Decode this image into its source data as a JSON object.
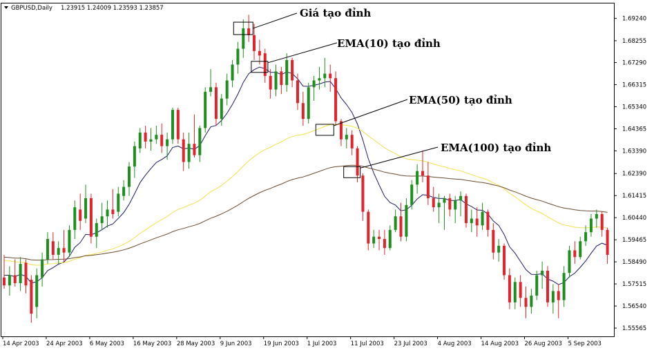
{
  "header": {
    "symbol": "GBPUSD,Daily",
    "ohlc": "1.23915 1.24009 1.23593 1.23857"
  },
  "colors": {
    "bull": "#1e8f1e",
    "bear": "#e0242b",
    "ema10": "#1a1a66",
    "ema50": "#f2e24a",
    "ema100": "#6b4a2e",
    "grid": "#000000",
    "background": "#ffffff"
  },
  "chart_data": {
    "type": "candlestick",
    "title": "",
    "xlabel": "",
    "ylabel": "",
    "ylim": [
      1.552,
      1.699
    ],
    "grid": false,
    "y_ticks": [
      "1.69240",
      "1.68255",
      "1.67290",
      "1.66315",
      "1.65340",
      "1.64365",
      "1.63390",
      "1.62390",
      "1.61415",
      "1.60440",
      "1.59465",
      "1.58490",
      "1.57515",
      "1.56540",
      "1.55565"
    ],
    "x_ticks": [
      "14 Apr 2003",
      "24 Apr 2003",
      "6 May 2003",
      "16 May 2003",
      "28 May 2003",
      "9 Jun 2003",
      "19 Jun 2003",
      "1 Jul 2003",
      "11 Jul 2003",
      "23 Jul 2003",
      "4 Aug 2003",
      "14 Aug 2003",
      "26 Aug 2003",
      "5 Sep 2003"
    ],
    "x_tick_index": [
      0,
      8,
      16,
      24,
      32,
      40,
      48,
      56,
      64,
      72,
      80,
      88,
      96,
      104
    ],
    "candles": [
      {
        "o": 1.578,
        "h": 1.588,
        "l": 1.573,
        "c": 1.5745
      },
      {
        "o": 1.5745,
        "h": 1.583,
        "l": 1.57,
        "c": 1.579
      },
      {
        "o": 1.579,
        "h": 1.586,
        "l": 1.574,
        "c": 1.5755
      },
      {
        "o": 1.5755,
        "h": 1.587,
        "l": 1.572,
        "c": 1.584
      },
      {
        "o": 1.5845,
        "h": 1.586,
        "l": 1.571,
        "c": 1.5745
      },
      {
        "o": 1.577,
        "h": 1.579,
        "l": 1.558,
        "c": 1.562
      },
      {
        "o": 1.565,
        "h": 1.582,
        "l": 1.56,
        "c": 1.579
      },
      {
        "o": 1.578,
        "h": 1.589,
        "l": 1.574,
        "c": 1.586
      },
      {
        "o": 1.586,
        "h": 1.598,
        "l": 1.584,
        "c": 1.595
      },
      {
        "o": 1.594,
        "h": 1.598,
        "l": 1.586,
        "c": 1.588
      },
      {
        "o": 1.588,
        "h": 1.594,
        "l": 1.584,
        "c": 1.591
      },
      {
        "o": 1.591,
        "h": 1.599,
        "l": 1.585,
        "c": 1.589
      },
      {
        "o": 1.589,
        "h": 1.601,
        "l": 1.587,
        "c": 1.599
      },
      {
        "o": 1.599,
        "h": 1.612,
        "l": 1.595,
        "c": 1.609
      },
      {
        "o": 1.608,
        "h": 1.615,
        "l": 1.599,
        "c": 1.603
      },
      {
        "o": 1.604,
        "h": 1.619,
        "l": 1.602,
        "c": 1.613
      },
      {
        "o": 1.613,
        "h": 1.615,
        "l": 1.593,
        "c": 1.596
      },
      {
        "o": 1.596,
        "h": 1.604,
        "l": 1.591,
        "c": 1.602
      },
      {
        "o": 1.602,
        "h": 1.611,
        "l": 1.599,
        "c": 1.605
      },
      {
        "o": 1.605,
        "h": 1.612,
        "l": 1.6,
        "c": 1.608
      },
      {
        "o": 1.608,
        "h": 1.617,
        "l": 1.604,
        "c": 1.606
      },
      {
        "o": 1.607,
        "h": 1.618,
        "l": 1.605,
        "c": 1.615
      },
      {
        "o": 1.614,
        "h": 1.621,
        "l": 1.612,
        "c": 1.618
      },
      {
        "o": 1.618,
        "h": 1.629,
        "l": 1.614,
        "c": 1.627
      },
      {
        "o": 1.627,
        "h": 1.638,
        "l": 1.622,
        "c": 1.636
      },
      {
        "o": 1.635,
        "h": 1.644,
        "l": 1.633,
        "c": 1.642
      },
      {
        "o": 1.642,
        "h": 1.645,
        "l": 1.635,
        "c": 1.638
      },
      {
        "o": 1.638,
        "h": 1.644,
        "l": 1.634,
        "c": 1.639
      },
      {
        "o": 1.639,
        "h": 1.645,
        "l": 1.637,
        "c": 1.641
      },
      {
        "o": 1.641,
        "h": 1.646,
        "l": 1.633,
        "c": 1.636
      },
      {
        "o": 1.636,
        "h": 1.642,
        "l": 1.63,
        "c": 1.639
      },
      {
        "o": 1.639,
        "h": 1.653,
        "l": 1.637,
        "c": 1.652
      },
      {
        "o": 1.652,
        "h": 1.653,
        "l": 1.637,
        "c": 1.639
      },
      {
        "o": 1.639,
        "h": 1.642,
        "l": 1.625,
        "c": 1.629
      },
      {
        "o": 1.629,
        "h": 1.642,
        "l": 1.626,
        "c": 1.637
      },
      {
        "o": 1.637,
        "h": 1.65,
        "l": 1.631,
        "c": 1.632
      },
      {
        "o": 1.632,
        "h": 1.645,
        "l": 1.629,
        "c": 1.644
      },
      {
        "o": 1.644,
        "h": 1.662,
        "l": 1.642,
        "c": 1.66
      },
      {
        "o": 1.66,
        "h": 1.67,
        "l": 1.658,
        "c": 1.662
      },
      {
        "o": 1.662,
        "h": 1.664,
        "l": 1.645,
        "c": 1.648
      },
      {
        "o": 1.648,
        "h": 1.659,
        "l": 1.645,
        "c": 1.657
      },
      {
        "o": 1.657,
        "h": 1.668,
        "l": 1.654,
        "c": 1.665
      },
      {
        "o": 1.665,
        "h": 1.674,
        "l": 1.662,
        "c": 1.672
      },
      {
        "o": 1.672,
        "h": 1.682,
        "l": 1.668,
        "c": 1.679
      },
      {
        "o": 1.679,
        "h": 1.692,
        "l": 1.675,
        "c": 1.688
      },
      {
        "o": 1.688,
        "h": 1.694,
        "l": 1.682,
        "c": 1.685
      },
      {
        "o": 1.685,
        "h": 1.69,
        "l": 1.674,
        "c": 1.678
      },
      {
        "o": 1.678,
        "h": 1.683,
        "l": 1.672,
        "c": 1.676
      },
      {
        "o": 1.677,
        "h": 1.679,
        "l": 1.664,
        "c": 1.667
      },
      {
        "o": 1.667,
        "h": 1.67,
        "l": 1.657,
        "c": 1.661
      },
      {
        "o": 1.661,
        "h": 1.672,
        "l": 1.658,
        "c": 1.669
      },
      {
        "o": 1.669,
        "h": 1.671,
        "l": 1.659,
        "c": 1.663
      },
      {
        "o": 1.663,
        "h": 1.677,
        "l": 1.66,
        "c": 1.674
      },
      {
        "o": 1.674,
        "h": 1.675,
        "l": 1.662,
        "c": 1.665
      },
      {
        "o": 1.665,
        "h": 1.668,
        "l": 1.652,
        "c": 1.655
      },
      {
        "o": 1.655,
        "h": 1.66,
        "l": 1.645,
        "c": 1.648
      },
      {
        "o": 1.648,
        "h": 1.664,
        "l": 1.646,
        "c": 1.662
      },
      {
        "o": 1.662,
        "h": 1.667,
        "l": 1.656,
        "c": 1.665
      },
      {
        "o": 1.665,
        "h": 1.671,
        "l": 1.661,
        "c": 1.666
      },
      {
        "o": 1.666,
        "h": 1.675,
        "l": 1.662,
        "c": 1.668
      },
      {
        "o": 1.668,
        "h": 1.672,
        "l": 1.66,
        "c": 1.666
      },
      {
        "o": 1.666,
        "h": 1.669,
        "l": 1.645,
        "c": 1.647
      },
      {
        "o": 1.647,
        "h": 1.648,
        "l": 1.636,
        "c": 1.639
      },
      {
        "o": 1.639,
        "h": 1.644,
        "l": 1.635,
        "c": 1.641
      },
      {
        "o": 1.641,
        "h": 1.643,
        "l": 1.632,
        "c": 1.635
      },
      {
        "o": 1.635,
        "h": 1.636,
        "l": 1.62,
        "c": 1.623
      },
      {
        "o": 1.623,
        "h": 1.624,
        "l": 1.603,
        "c": 1.607
      },
      {
        "o": 1.607,
        "h": 1.608,
        "l": 1.59,
        "c": 1.593
      },
      {
        "o": 1.593,
        "h": 1.599,
        "l": 1.591,
        "c": 1.596
      },
      {
        "o": 1.596,
        "h": 1.599,
        "l": 1.59,
        "c": 1.595
      },
      {
        "o": 1.595,
        "h": 1.599,
        "l": 1.588,
        "c": 1.591
      },
      {
        "o": 1.591,
        "h": 1.601,
        "l": 1.59,
        "c": 1.599
      },
      {
        "o": 1.599,
        "h": 1.608,
        "l": 1.598,
        "c": 1.605
      },
      {
        "o": 1.605,
        "h": 1.611,
        "l": 1.594,
        "c": 1.596
      },
      {
        "o": 1.596,
        "h": 1.613,
        "l": 1.594,
        "c": 1.61
      },
      {
        "o": 1.61,
        "h": 1.621,
        "l": 1.608,
        "c": 1.619
      },
      {
        "o": 1.619,
        "h": 1.628,
        "l": 1.615,
        "c": 1.625
      },
      {
        "o": 1.625,
        "h": 1.634,
        "l": 1.62,
        "c": 1.623
      },
      {
        "o": 1.623,
        "h": 1.629,
        "l": 1.61,
        "c": 1.613
      },
      {
        "o": 1.613,
        "h": 1.618,
        "l": 1.607,
        "c": 1.609
      },
      {
        "o": 1.609,
        "h": 1.615,
        "l": 1.602,
        "c": 1.611
      },
      {
        "o": 1.611,
        "h": 1.614,
        "l": 1.599,
        "c": 1.613
      },
      {
        "o": 1.613,
        "h": 1.615,
        "l": 1.605,
        "c": 1.608
      },
      {
        "o": 1.608,
        "h": 1.614,
        "l": 1.602,
        "c": 1.612
      },
      {
        "o": 1.612,
        "h": 1.616,
        "l": 1.605,
        "c": 1.614
      },
      {
        "o": 1.614,
        "h": 1.615,
        "l": 1.6,
        "c": 1.602
      },
      {
        "o": 1.602,
        "h": 1.608,
        "l": 1.598,
        "c": 1.604
      },
      {
        "o": 1.604,
        "h": 1.609,
        "l": 1.596,
        "c": 1.601
      },
      {
        "o": 1.601,
        "h": 1.611,
        "l": 1.599,
        "c": 1.607
      },
      {
        "o": 1.607,
        "h": 1.608,
        "l": 1.596,
        "c": 1.599
      },
      {
        "o": 1.599,
        "h": 1.602,
        "l": 1.586,
        "c": 1.589
      },
      {
        "o": 1.589,
        "h": 1.595,
        "l": 1.585,
        "c": 1.592
      },
      {
        "o": 1.592,
        "h": 1.593,
        "l": 1.577,
        "c": 1.579
      },
      {
        "o": 1.579,
        "h": 1.582,
        "l": 1.564,
        "c": 1.567
      },
      {
        "o": 1.567,
        "h": 1.578,
        "l": 1.564,
        "c": 1.576
      },
      {
        "o": 1.576,
        "h": 1.579,
        "l": 1.565,
        "c": 1.569
      },
      {
        "o": 1.569,
        "h": 1.574,
        "l": 1.56,
        "c": 1.565
      },
      {
        "o": 1.565,
        "h": 1.573,
        "l": 1.562,
        "c": 1.57
      },
      {
        "o": 1.57,
        "h": 1.581,
        "l": 1.568,
        "c": 1.579
      },
      {
        "o": 1.579,
        "h": 1.585,
        "l": 1.573,
        "c": 1.581
      },
      {
        "o": 1.581,
        "h": 1.583,
        "l": 1.565,
        "c": 1.567
      },
      {
        "o": 1.567,
        "h": 1.575,
        "l": 1.562,
        "c": 1.572
      },
      {
        "o": 1.572,
        "h": 1.575,
        "l": 1.56,
        "c": 1.568
      },
      {
        "o": 1.568,
        "h": 1.583,
        "l": 1.565,
        "c": 1.58
      },
      {
        "o": 1.58,
        "h": 1.592,
        "l": 1.578,
        "c": 1.59
      },
      {
        "o": 1.59,
        "h": 1.594,
        "l": 1.584,
        "c": 1.587
      },
      {
        "o": 1.587,
        "h": 1.596,
        "l": 1.586,
        "c": 1.594
      },
      {
        "o": 1.594,
        "h": 1.601,
        "l": 1.592,
        "c": 1.598
      },
      {
        "o": 1.598,
        "h": 1.606,
        "l": 1.596,
        "c": 1.604
      },
      {
        "o": 1.604,
        "h": 1.608,
        "l": 1.6,
        "c": 1.606
      },
      {
        "o": 1.606,
        "h": 1.607,
        "l": 1.596,
        "c": 1.599
      },
      {
        "o": 1.599,
        "h": 1.6,
        "l": 1.584,
        "c": 1.588
      }
    ],
    "ema10_start": 1.58,
    "ema50_start": 1.586,
    "ema100_start": 1.5872,
    "annotations": [
      {
        "label": "Giá tạo đỉnh",
        "candle": 44,
        "price": 1.688
      },
      {
        "label": "EMA(10) tạo đỉnh",
        "candle": 47,
        "price": 1.671
      },
      {
        "label": "EMA(50) tạo đỉnh",
        "candle": 59,
        "price": 1.6432
      },
      {
        "label": "EMA(100) tạo đỉnh",
        "candle": 64,
        "price": 1.6245
      }
    ]
  }
}
